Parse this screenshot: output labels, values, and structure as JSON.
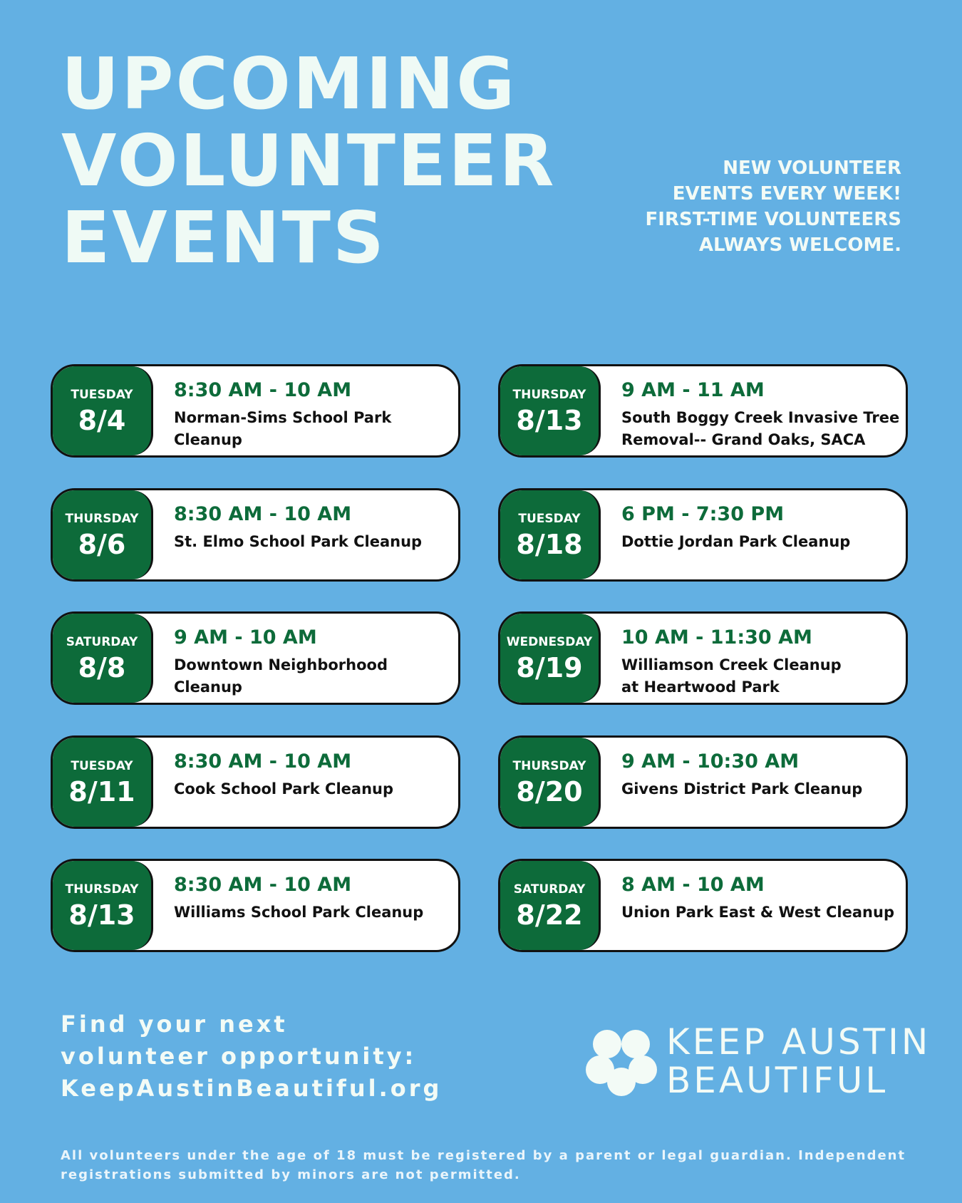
{
  "header": {
    "title_lines": [
      "UPCOMING",
      "VOLUNTEER",
      "EVENTS"
    ],
    "note_lines": [
      "NEW VOLUNTEER",
      "EVENTS EVERY WEEK!",
      "FIRST-TIME VOLUNTEERS",
      "ALWAYS WELCOME."
    ]
  },
  "events": [
    {
      "day": "TUESDAY",
      "date": "8/4",
      "time": "8:30 AM - 10 AM",
      "name_lines": [
        "Norman-Sims School Park Cleanup"
      ]
    },
    {
      "day": "THURSDAY",
      "date": "8/6",
      "time": "8:30 AM - 10 AM",
      "name_lines": [
        "St. Elmo School Park Cleanup"
      ]
    },
    {
      "day": "SATURDAY",
      "date": "8/8",
      "time": "9 AM - 10 AM",
      "name_lines": [
        "Downtown Neighborhood Cleanup"
      ]
    },
    {
      "day": "TUESDAY",
      "date": "8/11",
      "time": "8:30 AM - 10 AM",
      "name_lines": [
        "Cook School Park Cleanup"
      ]
    },
    {
      "day": "THURSDAY",
      "date": "8/13",
      "time": "8:30 AM - 10 AM",
      "name_lines": [
        "Williams School Park Cleanup"
      ]
    },
    {
      "day": "THURSDAY",
      "date": "8/13",
      "time": "9 AM - 11 AM",
      "name_lines": [
        "South Boggy Creek Invasive Tree",
        "Removal-- Grand Oaks, SACA"
      ]
    },
    {
      "day": "TUESDAY",
      "date": "8/18",
      "time": "6 PM - 7:30 PM",
      "name_lines": [
        "Dottie Jordan Park Cleanup"
      ]
    },
    {
      "day": "WEDNESDAY",
      "date": "8/19",
      "time": "10 AM - 11:30 AM",
      "name_lines": [
        "Williamson Creek Cleanup",
        "at Heartwood Park"
      ]
    },
    {
      "day": "THURSDAY",
      "date": "8/20",
      "time": "9 AM - 10:30 AM",
      "name_lines": [
        "Givens District Park Cleanup"
      ]
    },
    {
      "day": "SATURDAY",
      "date": "8/22",
      "time": "8 AM - 10 AM",
      "name_lines": [
        "Union Park East & West Cleanup"
      ]
    }
  ],
  "footer": {
    "cta_lines": [
      "Find your next",
      "volunteer opportunity:",
      "KeepAustinBeautiful.org"
    ],
    "logo_lines": [
      "KEEP AUSTIN",
      "BEAUTIFUL"
    ],
    "disclaimer_lines": [
      "All volunteers under the age of 18 must be registered by a parent or legal guardian. Independent",
      "registrations submitted by minors are not permitted."
    ]
  }
}
